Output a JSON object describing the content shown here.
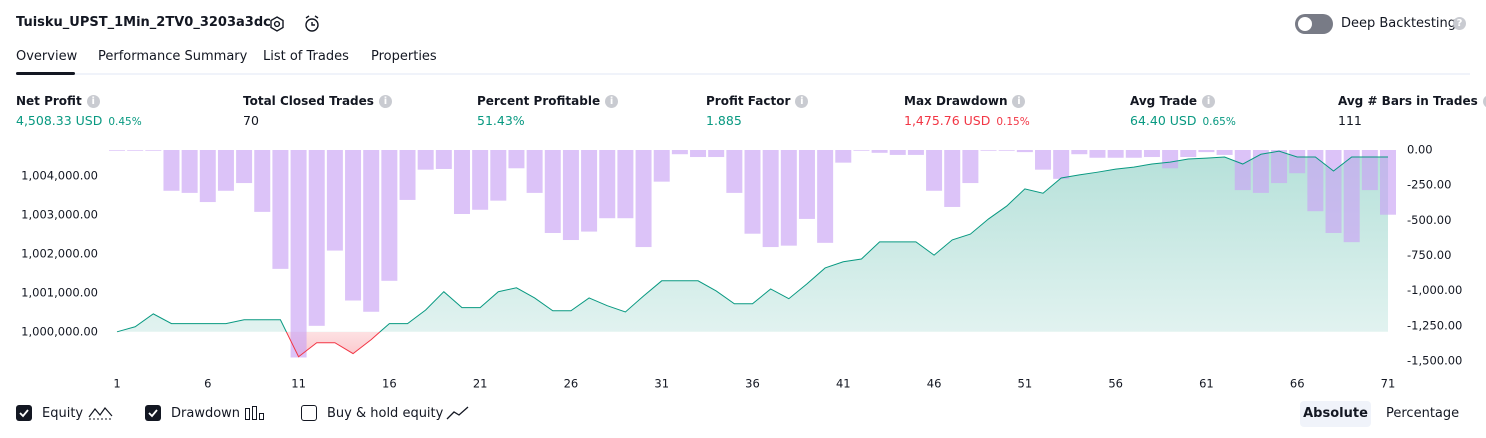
{
  "header": {
    "title": "Tuisku_UPST_1Min_2TV0_3203a3dc",
    "deep_backtesting": "Deep Backtesting"
  },
  "tabs": [
    "Overview",
    "Performance Summary",
    "List of Trades",
    "Properties"
  ],
  "metrics": [
    {
      "label": "Net Profit",
      "value": "4,508.33 USD",
      "percent": "0.45%",
      "color": "#089981"
    },
    {
      "label": "Total Closed Trades",
      "value": "70",
      "color": "#131722"
    },
    {
      "label": "Percent Profitable",
      "value": "51.43%",
      "color": "#089981"
    },
    {
      "label": "Profit Factor",
      "value": "1.885",
      "color": "#089981"
    },
    {
      "label": "Max Drawdown",
      "value": "1,475.76 USD",
      "percent": "0.15%",
      "color": "#f23645"
    },
    {
      "label": "Avg Trade",
      "value": "64.40 USD",
      "percent": "0.65%",
      "color": "#089981"
    },
    {
      "label": "Avg # Bars in Trades",
      "value": "111",
      "color": "#131722"
    }
  ],
  "chart_data": {
    "type": "equity_drawdown",
    "x": [
      1,
      2,
      3,
      4,
      5,
      6,
      7,
      8,
      9,
      10,
      11,
      12,
      13,
      14,
      15,
      16,
      17,
      18,
      19,
      20,
      21,
      22,
      23,
      24,
      25,
      26,
      27,
      28,
      29,
      30,
      31,
      32,
      33,
      34,
      35,
      36,
      37,
      38,
      39,
      40,
      41,
      42,
      43,
      44,
      45,
      46,
      47,
      48,
      49,
      50,
      51,
      52,
      53,
      54,
      55,
      56,
      57,
      58,
      59,
      60,
      61,
      62,
      63,
      64,
      65,
      66,
      67,
      68,
      69,
      70,
      71
    ],
    "xlim": [
      1,
      71
    ],
    "xticks": [
      1,
      6,
      11,
      16,
      21,
      26,
      31,
      36,
      41,
      46,
      51,
      56,
      61,
      66,
      71
    ],
    "ylim": [
      999250,
      1004670
    ],
    "yticks": [
      {
        "value": 1000000,
        "label": "1,000,000.00"
      },
      {
        "value": 1001000,
        "label": "1,001,000.00"
      },
      {
        "value": 1002000,
        "label": "1,002,000.00"
      },
      {
        "value": 1003000,
        "label": "1,003,000.00"
      },
      {
        "value": 1004000,
        "label": "1,004,000.00"
      }
    ],
    "y2lim": [
      -1500,
      0
    ],
    "y2ticks": [
      {
        "value": 0,
        "label": "0.00"
      },
      {
        "value": -250,
        "label": "-250.00"
      },
      {
        "value": -500,
        "label": "-500.00"
      },
      {
        "value": -750,
        "label": "-750.00"
      },
      {
        "value": -1000,
        "label": "-1,000.00"
      },
      {
        "value": -1250,
        "label": "-1,250.00"
      },
      {
        "value": -1500,
        "label": "-1,500.00"
      }
    ],
    "series": [
      {
        "name": "Equity",
        "color": "#089981",
        "loss_color": "#f23645",
        "values": [
          1000000,
          1000130,
          1000460,
          1000210,
          1000210,
          1000210,
          1000210,
          1000310,
          1000310,
          1000310,
          999360,
          999720,
          999720,
          999440,
          999800,
          1000210,
          1000210,
          1000560,
          1001030,
          1000620,
          1000620,
          1001030,
          1001130,
          1000870,
          1000540,
          1000540,
          1000870,
          1000670,
          1000510,
          1000920,
          1001310,
          1001310,
          1001310,
          1001050,
          1000720,
          1000720,
          1001100,
          1000850,
          1001230,
          1001640,
          1001800,
          1001870,
          1002310,
          1002310,
          1002310,
          1001970,
          1002360,
          1002510,
          1002900,
          1003230,
          1003670,
          1003560,
          1003950,
          1004030,
          1004100,
          1004180,
          1004230,
          1004310,
          1004360,
          1004440,
          1004460,
          1004490,
          1004310,
          1004560,
          1004640,
          1004490,
          1004490,
          1004130,
          1004490,
          1004490,
          1004490
        ]
      },
      {
        "name": "Drawdown",
        "color": "#c9a3f5",
        "axis": "y2",
        "values": [
          -5,
          -5,
          -5,
          -290,
          -305,
          -370,
          -290,
          -235,
          -440,
          -845,
          -1475,
          -1250,
          -715,
          -1070,
          -1150,
          -930,
          -355,
          -140,
          -135,
          -455,
          -425,
          -360,
          -130,
          -305,
          -590,
          -640,
          -580,
          -485,
          -485,
          -690,
          -225,
          -30,
          -50,
          -50,
          -305,
          -595,
          -690,
          -680,
          -490,
          -660,
          -90,
          -5,
          -20,
          -35,
          -35,
          -290,
          -405,
          -235,
          -5,
          -5,
          -15,
          -140,
          -205,
          -30,
          -55,
          -55,
          -55,
          -50,
          -130,
          -50,
          -15,
          -35,
          -285,
          -305,
          -235,
          -165,
          -435,
          -590,
          -655,
          -285,
          -460
        ]
      }
    ]
  },
  "controls": {
    "buy_hold": "Buy & hold equity",
    "modes": [
      "Absolute",
      "Percentage"
    ]
  }
}
